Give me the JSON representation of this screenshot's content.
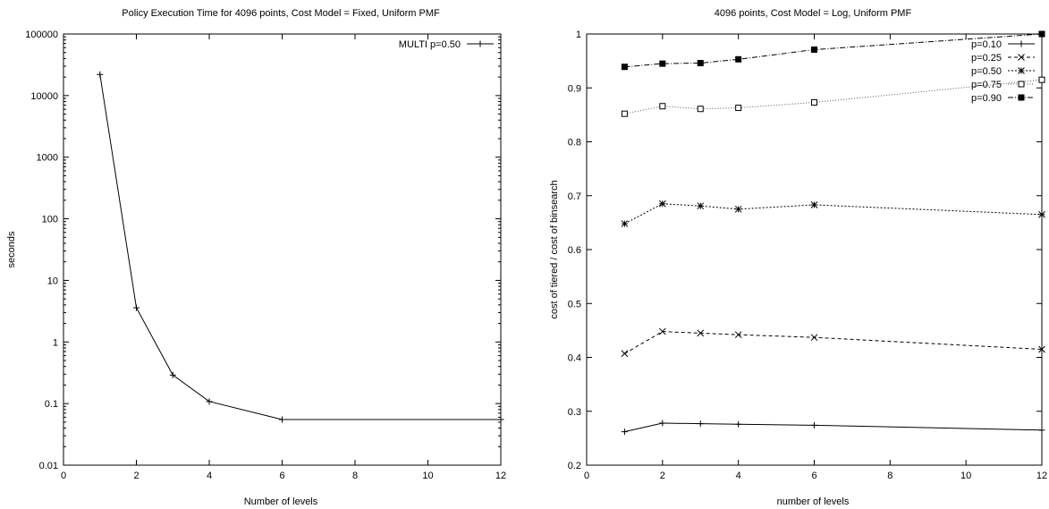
{
  "chart_data": [
    {
      "type": "line",
      "title": "Policy Execution Time for 4096 points, Cost Model = Fixed, Uniform PMF",
      "xlabel": "Number of levels",
      "ylabel": "seconds",
      "xlim": [
        0,
        12
      ],
      "ylim": [
        0.01,
        100000
      ],
      "yscale": "log",
      "grid": false,
      "legend_position": "top-right",
      "x_ticks": [
        "0",
        "2",
        "4",
        "6",
        "8",
        "10",
        "12"
      ],
      "y_ticks": [
        "0.01",
        "0.1",
        "1",
        "10",
        "100",
        "1000",
        "10000",
        "100000"
      ],
      "series": [
        {
          "name": "MULTI p=0.50",
          "marker": "plus",
          "dash": "solid",
          "x": [
            1,
            2,
            3,
            4,
            6,
            12
          ],
          "y": [
            22000,
            3.6,
            0.29,
            0.108,
            0.055,
            0.055
          ]
        }
      ]
    },
    {
      "type": "line",
      "title": "4096 points, Cost Model = Log, Uniform PMF",
      "xlabel": "number of levels",
      "ylabel": "cost of tiered / cost of binsearch",
      "xlim": [
        0,
        12
      ],
      "ylim": [
        0.2,
        1.0
      ],
      "yscale": "linear",
      "grid": false,
      "legend_position": "top-right",
      "x_ticks": [
        "0",
        "2",
        "4",
        "6",
        "8",
        "10",
        "12"
      ],
      "y_ticks": [
        "0.2",
        "0.3",
        "0.4",
        "0.5",
        "0.6",
        "0.7",
        "0.8",
        "0.9",
        "1"
      ],
      "series": [
        {
          "name": "p=0.10",
          "marker": "plus",
          "dash": "solid",
          "x": [
            1,
            2,
            3,
            4,
            6,
            12
          ],
          "y": [
            0.262,
            0.278,
            0.277,
            0.276,
            0.274,
            0.265
          ]
        },
        {
          "name": "p=0.25",
          "marker": "cross",
          "dash": "dashed",
          "x": [
            1,
            2,
            3,
            4,
            6,
            12
          ],
          "y": [
            0.407,
            0.448,
            0.445,
            0.442,
            0.437,
            0.415
          ]
        },
        {
          "name": "p=0.50",
          "marker": "star",
          "dash": "dotted",
          "x": [
            1,
            2,
            3,
            4,
            6,
            12
          ],
          "y": [
            0.648,
            0.685,
            0.681,
            0.675,
            0.683,
            0.665
          ]
        },
        {
          "name": "p=0.75",
          "marker": "open-square",
          "dash": "fine-dotted",
          "x": [
            1,
            2,
            3,
            4,
            6,
            12
          ],
          "y": [
            0.852,
            0.866,
            0.861,
            0.863,
            0.873,
            0.915
          ]
        },
        {
          "name": "p=0.90",
          "marker": "filled-square",
          "dash": "dash-dot",
          "x": [
            1,
            2,
            3,
            4,
            6,
            12
          ],
          "y": [
            0.939,
            0.945,
            0.946,
            0.953,
            0.971,
            1.0
          ]
        }
      ]
    }
  ]
}
